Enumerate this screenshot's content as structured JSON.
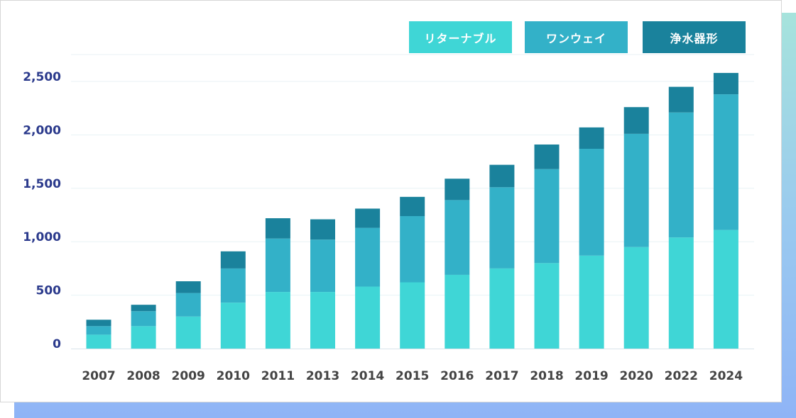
{
  "chart_data": {
    "type": "bar",
    "stacked": true,
    "categories": [
      "2007",
      "2008",
      "2009",
      "2010",
      "2011",
      "2013",
      "2014",
      "2015",
      "2016",
      "2017",
      "2018",
      "2019",
      "2020",
      "2022",
      "2024"
    ],
    "series": [
      {
        "name": "リターナブル",
        "color": "#3fd6d6",
        "values": [
          130,
          210,
          300,
          430,
          530,
          530,
          580,
          620,
          690,
          750,
          800,
          870,
          950,
          1040,
          1110
        ]
      },
      {
        "name": "ワンウェイ",
        "color": "#33b1c8",
        "values": [
          80,
          140,
          220,
          320,
          500,
          490,
          550,
          620,
          700,
          760,
          880,
          1000,
          1060,
          1170,
          1270
        ]
      },
      {
        "name": "浄水器形",
        "color": "#1a829c",
        "values": [
          60,
          60,
          110,
          160,
          190,
          190,
          180,
          180,
          200,
          210,
          230,
          200,
          250,
          240,
          200
        ]
      }
    ],
    "yticks": [
      "0",
      "500",
      "1,000",
      "1,500",
      "2,000",
      "2,500"
    ],
    "ylim": [
      0,
      2600
    ],
    "grid": true,
    "legend_position": "top-right"
  }
}
